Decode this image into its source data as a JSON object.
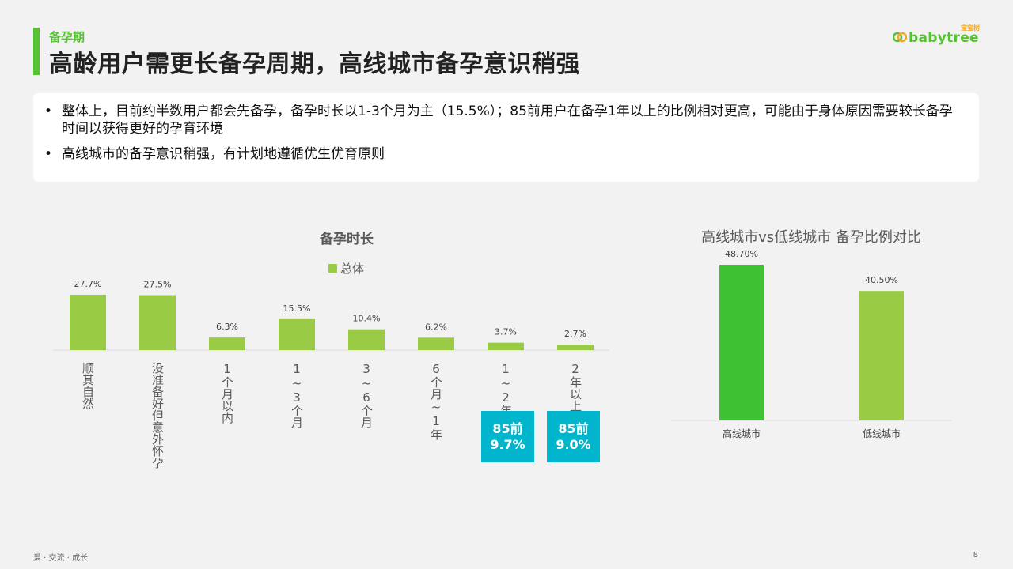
{
  "header": {
    "section": "备孕期",
    "title": "高龄用户需更长备孕周期，高线城市备孕意识稍强",
    "logo_text": "babytree",
    "logo_cn": "宝宝树"
  },
  "summary": {
    "bullets": [
      "整体上，目前约半数用户都会先备孕，备孕时长以1-3个月为主（15.5%）；85前用户在备孕1年以上的比例相对更高，可能由于身体原因需要较长备孕时间以获得更好的孕育环境",
      "高线城市的备孕意识稍强，有计划地遵循优生优育原则"
    ]
  },
  "callouts": [
    {
      "label": "85前",
      "value": "9.7%"
    },
    {
      "label": "85前",
      "value": "9.0%"
    }
  ],
  "footer": {
    "slogan": "爱 · 交流 · 成长",
    "page": "8"
  },
  "colors": {
    "accent_green": "#55c231",
    "bar_green": "#99cc44",
    "bar_green_dark": "#3ec234",
    "callout": "#00b5cc"
  },
  "chart_data": [
    {
      "type": "bar",
      "title": "备孕时长",
      "series": [
        {
          "name": "总体",
          "values": [
            27.7,
            27.5,
            6.3,
            15.5,
            10.4,
            6.2,
            3.7,
            2.7
          ]
        }
      ],
      "categories": [
        "顺其自然",
        "没准备好但意外怀孕",
        "1个月以内",
        "1~3个月",
        "3~6个月",
        "6个月~1年",
        "1~2年",
        "2年以上"
      ],
      "data_labels": [
        "27.7%",
        "27.5%",
        "6.3%",
        "15.5%",
        "10.4%",
        "6.2%",
        "3.7%",
        "2.7%"
      ],
      "legend": "top-center",
      "ylim": [
        0,
        27.7
      ],
      "grid": false
    },
    {
      "type": "bar",
      "title": "高线城市vs低线城市 备孕比例对比",
      "categories": [
        "高线城市",
        "低线城市"
      ],
      "values": [
        48.7,
        40.5
      ],
      "data_labels": [
        "48.70%",
        "40.50%"
      ],
      "ylim": [
        0,
        48.7
      ],
      "grid": false
    }
  ]
}
